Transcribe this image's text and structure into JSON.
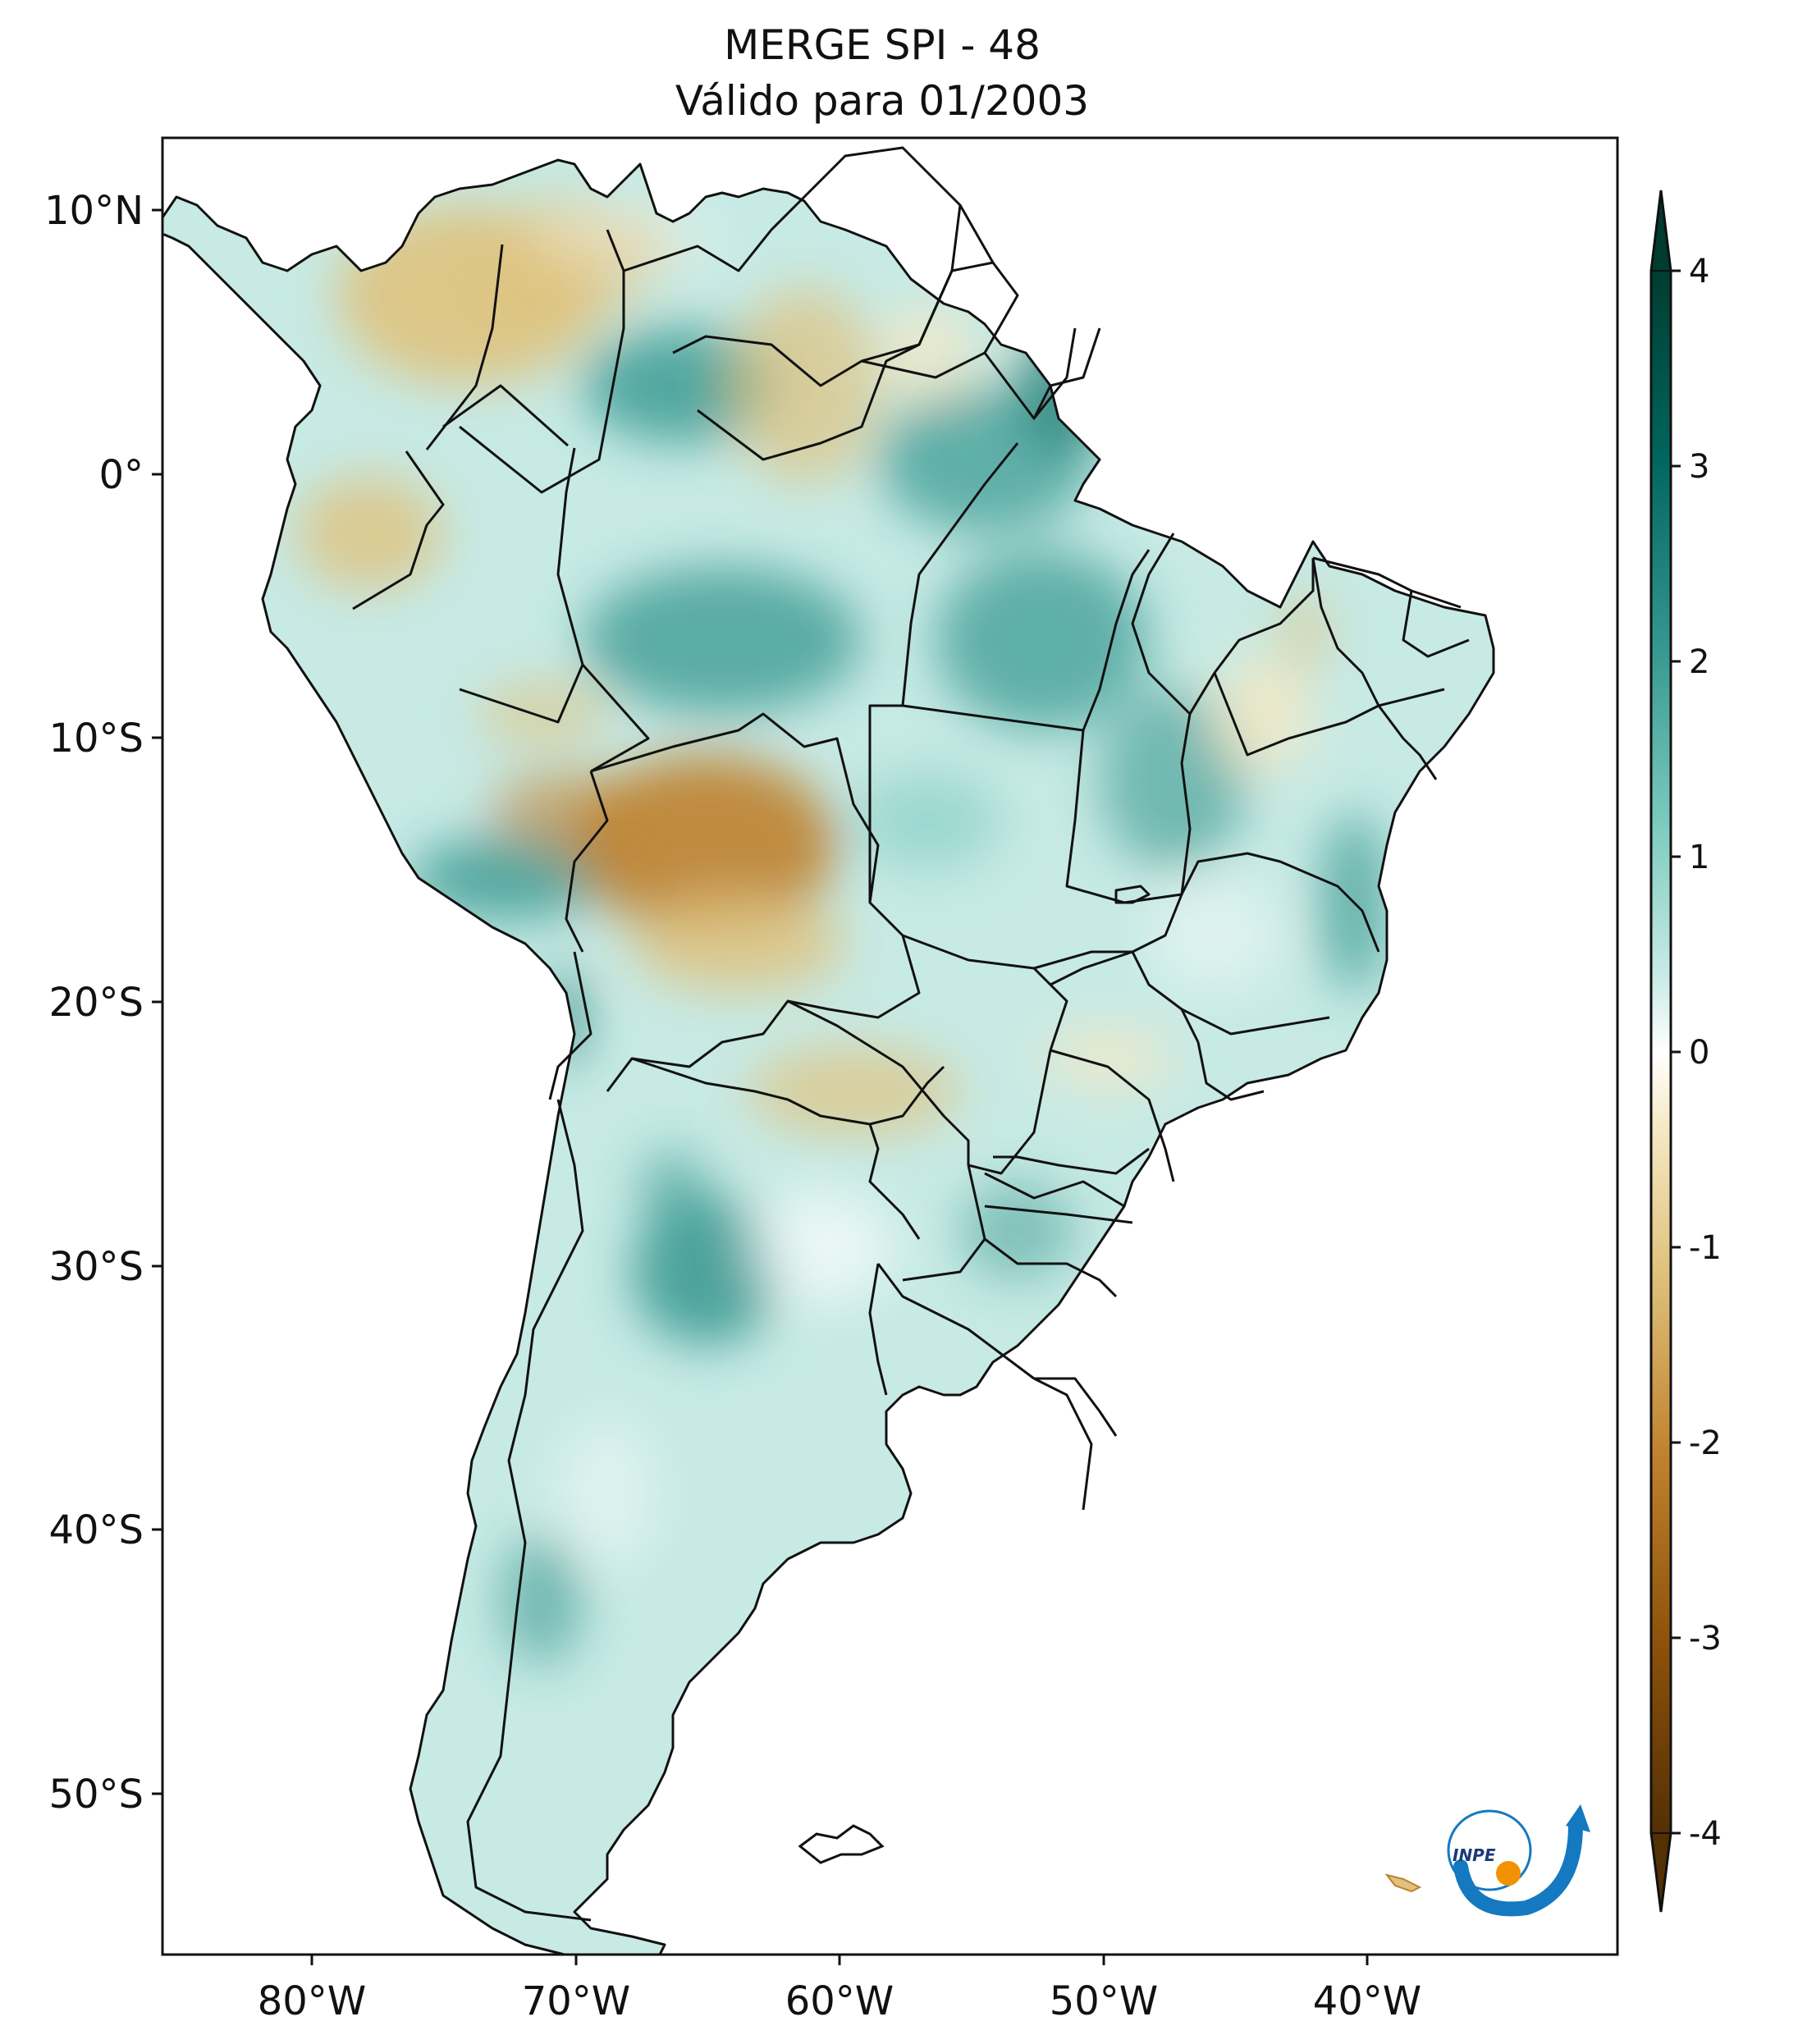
{
  "title": {
    "line1": "MERGE   SPI - 48",
    "line2": "Válido para 01/2003"
  },
  "map": {
    "lon_ticks": [
      "80°W",
      "70°W",
      "60°W",
      "50°W",
      "40°W"
    ],
    "lat_ticks": [
      "10°N",
      "0°",
      "10°S",
      "20°S",
      "30°S",
      "40°S",
      "50°S"
    ]
  },
  "colorbar": {
    "ticks": [
      "4",
      "3",
      "2",
      "1",
      "0",
      "-1",
      "-2",
      "-3",
      "-4"
    ],
    "colors": {
      "dry_extreme": "#543005",
      "dry_strong": "#8c510a",
      "dry_moderate": "#bf812d",
      "dry_mild": "#dfc27d",
      "dry_light": "#f6e8c3",
      "neutral": "#ffffff",
      "wet_light": "#c7eae5",
      "wet_mild": "#80cdc1",
      "wet_moderate": "#35978f",
      "wet_strong": "#01665e",
      "wet_extreme": "#003c30"
    }
  },
  "logo": {
    "text": "INPE",
    "colors": {
      "primary": "#1479c0",
      "accent": "#f39200"
    }
  }
}
